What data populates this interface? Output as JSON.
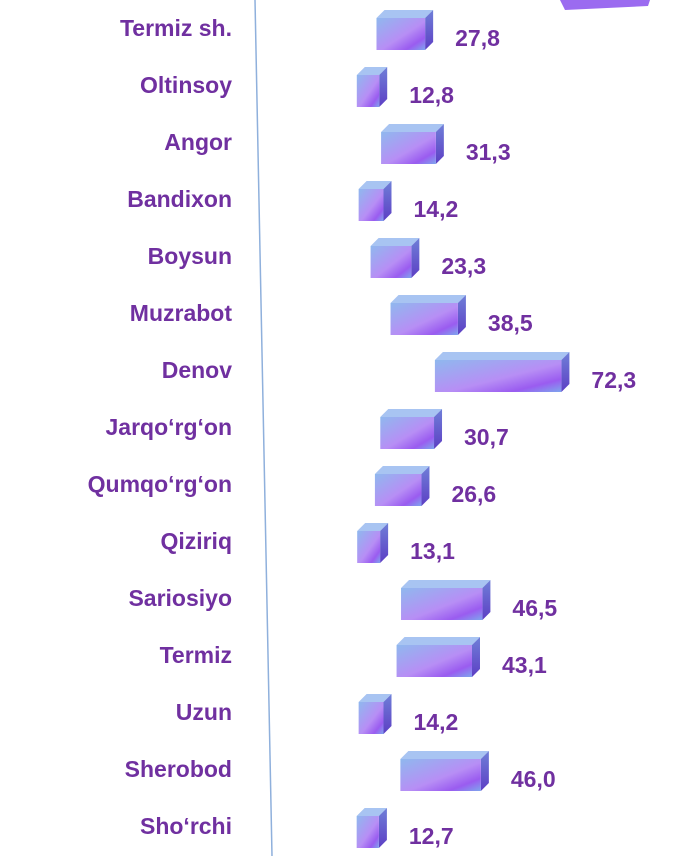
{
  "chart_data": {
    "type": "bar",
    "orientation": "horizontal",
    "categories": [
      "Termiz sh.",
      "Oltinsoy",
      "Angor",
      "Bandixon",
      "Boysun",
      "Muzrabot",
      "Denov",
      "Jarqo‘rg‘on",
      "Qumqo‘rg‘on",
      "Qiziriq",
      "Sariosiyo",
      "Termiz",
      "Uzun",
      "Sherobod",
      "Sho‘rchi"
    ],
    "values": [
      27.8,
      12.8,
      31.3,
      14.2,
      23.3,
      38.5,
      72.3,
      30.7,
      26.6,
      13.1,
      46.5,
      43.1,
      14.2,
      46.0,
      12.7
    ],
    "value_labels": [
      "27,8",
      "12,8",
      "31,3",
      "14,2",
      "23,3",
      "38,5",
      "72,3",
      "30,7",
      "26,6",
      "13,1",
      "46,5",
      "43,1",
      "14,2",
      "46,0",
      "12,7"
    ],
    "color": "#7030a0"
  }
}
